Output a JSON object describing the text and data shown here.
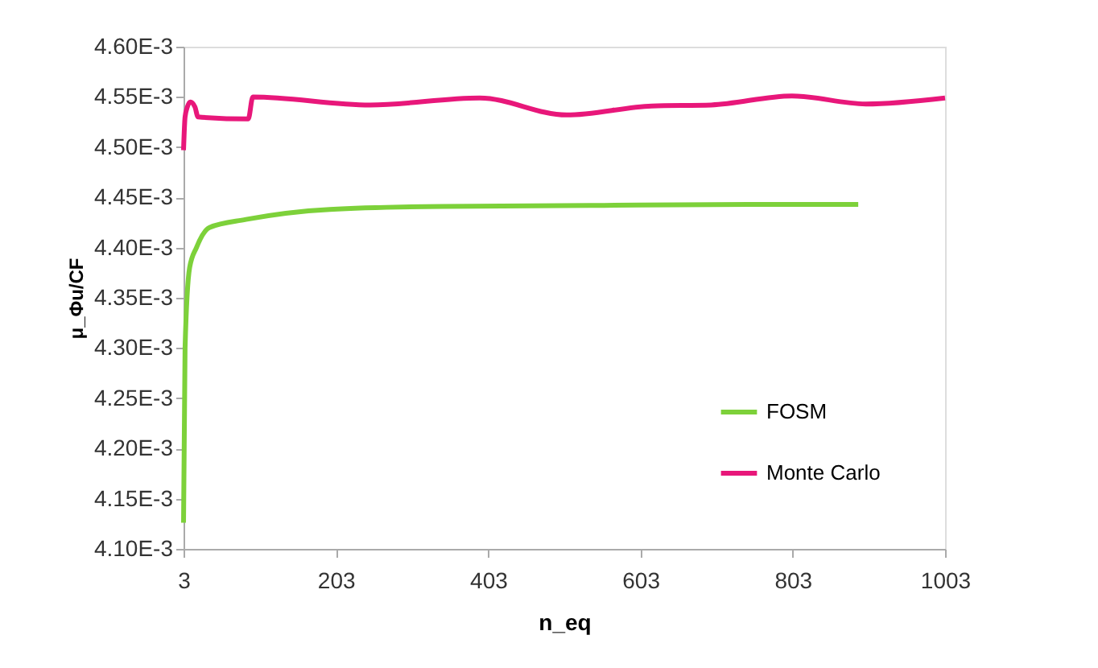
{
  "chart_data": {
    "type": "line",
    "xlabel": "n_eq",
    "ylabel": "μ_Φu/CF",
    "xlim": [
      3,
      1003
    ],
    "xticks": [
      3,
      203,
      403,
      603,
      803,
      1003
    ],
    "ylim": [
      0.0041,
      0.0046
    ],
    "yticks": [
      {
        "value": 0.0041,
        "label": "4.10E-3"
      },
      {
        "value": 0.00415,
        "label": "4.15E-3"
      },
      {
        "value": 0.0042,
        "label": "4.20E-3"
      },
      {
        "value": 0.00425,
        "label": "4.25E-3"
      },
      {
        "value": 0.0043,
        "label": "4.30E-3"
      },
      {
        "value": 0.00435,
        "label": "4.35E-3"
      },
      {
        "value": 0.0044,
        "label": "4.40E-3"
      },
      {
        "value": 0.00445,
        "label": "4.45E-3"
      },
      {
        "value": 0.0045,
        "label": "4.50E-3"
      },
      {
        "value": 0.00455,
        "label": "4.55E-3"
      },
      {
        "value": 0.0046,
        "label": "4.60E-3"
      }
    ],
    "grid": false,
    "legend": "bottom right",
    "marker": "none",
    "line_style": "solid",
    "series": [
      {
        "name": "FOSM",
        "color": "#7dd13a",
        "x": [
          3,
          5,
          11,
          20,
          37,
          85,
          195,
          343,
          555,
          766,
          889
        ],
        "values": [
          0.004126,
          0.0043,
          0.00438,
          0.0044,
          0.00442,
          0.004428,
          0.004438,
          0.004441,
          0.004442,
          0.004443,
          0.004443
        ]
      },
      {
        "name": "Monte Carlo",
        "color": "#e8177a",
        "x": [
          3,
          5,
          8,
          12,
          18,
          22,
          88,
          94,
          248,
          392,
          506,
          618,
          696,
          802,
          899,
          1003
        ],
        "values": [
          0.004497,
          0.00453,
          0.00454,
          0.004545,
          0.00454,
          0.00453,
          0.004528,
          0.00455,
          0.004542,
          0.004549,
          0.004532,
          0.004541,
          0.004542,
          0.004551,
          0.004543,
          0.004549
        ]
      }
    ]
  }
}
